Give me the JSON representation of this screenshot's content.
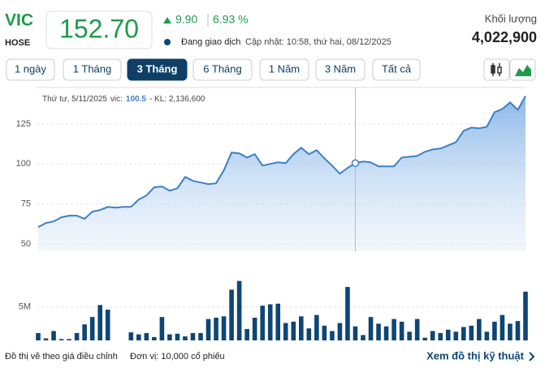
{
  "header": {
    "ticker": "VIC",
    "exchange": "HOSE",
    "price": "152.70",
    "change": "9.90",
    "change_percent": "6.93 %",
    "status": "Đang giao dịch",
    "updated": "Cập nhật: 10:58, thứ hai, 08/12/2025",
    "volume_label": "Khối lượng",
    "volume": "4,022,900"
  },
  "range_buttons": [
    "1 ngày",
    "1 Tháng",
    "3 Tháng",
    "6 Tháng",
    "1 Năm",
    "3 Năm",
    "Tất cả"
  ],
  "active_range": 2,
  "chart_data": [
    {
      "type": "area",
      "color": "#3d80c4",
      "grid": true,
      "values": [
        60.6,
        63.1,
        64.1,
        66.7,
        67.7,
        67.7,
        65.7,
        70.2,
        71.2,
        73.2,
        72.7,
        73.2,
        73.2,
        77.8,
        80.3,
        85.4,
        85.9,
        83.3,
        84.8,
        91.9,
        89.4,
        88.4,
        87.4,
        87.9,
        96,
        107.1,
        106.6,
        104,
        106.1,
        99,
        100,
        101,
        100.5,
        106.1,
        110.1,
        106.1,
        108.6,
        103.5,
        99,
        93.9,
        97.5,
        100.5,
        101.5,
        101,
        98.5,
        98.5,
        98.5,
        104,
        104.5,
        105,
        107.6,
        109.1,
        109.6,
        111.6,
        113.6,
        120.7,
        122.7,
        122.2,
        123.2,
        132.3,
        134.3,
        138.4,
        133.8,
        142.4
      ],
      "ylim": [
        45.5,
        147.7
      ],
      "yticks": [
        50,
        75,
        100,
        125
      ],
      "tooltip": {
        "date": "Thứ tư, 5/11/2025",
        "series_label": "vic:",
        "value": "100.5",
        "volume": "- KL: 2,136,600"
      }
    },
    {
      "type": "bar",
      "color": "#0e4675",
      "grid": true,
      "values": [
        1100000,
        300000,
        1400000,
        200000,
        200000,
        1100000,
        2400000,
        3500000,
        5300000,
        4600000,
        0,
        0,
        1200000,
        900000,
        1100000,
        500000,
        3500000,
        900000,
        1000000,
        600000,
        1100000,
        1100000,
        3200000,
        3400000,
        3600000,
        7600000,
        8900000,
        1700000,
        3400000,
        5200000,
        5400000,
        5500000,
        2600000,
        2800000,
        3600000,
        1800000,
        3800000,
        2200000,
        1400000,
        2600000,
        8000000,
        2100000,
        800000,
        3500000,
        2500000,
        2100000,
        3200000,
        2800000,
        1300000,
        3200000,
        400000,
        1400000,
        1100000,
        1600000,
        1300000,
        2000000,
        2200000,
        3200000,
        1300000,
        2800000,
        3800000,
        2500000,
        2900000,
        7300000
      ],
      "ylim": [
        0,
        9100000
      ],
      "yticks": [
        {
          "value": 5000000,
          "label": "5M"
        }
      ]
    }
  ],
  "footer": {
    "note": "Đồ thị vẽ theo giá điều chỉnh",
    "unit": "Đơn vị: 10,000 cổ phiếu",
    "link": "Xem đồ thị kỹ thuật"
  }
}
